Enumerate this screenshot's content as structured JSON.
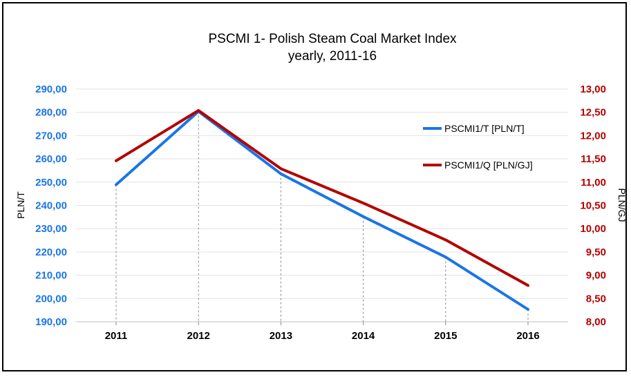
{
  "chart_data": {
    "type": "line",
    "title": "PSCMI 1- Polish Steam Coal Market Index",
    "subtitle": "yearly, 2011-16",
    "x": [
      "2011",
      "2012",
      "2013",
      "2014",
      "2015",
      "2016"
    ],
    "ylabel_left": "PLN/T",
    "ylabel_right": "PLN/GJ",
    "ylim_left": [
      190,
      290
    ],
    "ylim_right": [
      8,
      13
    ],
    "yticks_left": [
      "190,00",
      "200,00",
      "210,00",
      "220,00",
      "230,00",
      "240,00",
      "250,00",
      "260,00",
      "270,00",
      "280,00",
      "290,00"
    ],
    "yticks_right": [
      "8,00",
      "8,50",
      "9,00",
      "9,50",
      "10,00",
      "10,50",
      "11,00",
      "11,50",
      "12,00",
      "12,50",
      "13,00"
    ],
    "series": [
      {
        "name": "PSCMI1/T  [PLN/T]",
        "axis": "left",
        "color": "#1a75e8",
        "values": [
          248.9,
          280.4,
          253.6,
          235.2,
          217.8,
          195.3
        ]
      },
      {
        "name": "PSCMI1/Q  [PLN/GJ]",
        "axis": "right",
        "color": "#b40000",
        "values": [
          11.46,
          12.54,
          11.29,
          10.55,
          9.76,
          8.78
        ]
      }
    ],
    "grid": "horizontal",
    "legend_position": "right"
  }
}
